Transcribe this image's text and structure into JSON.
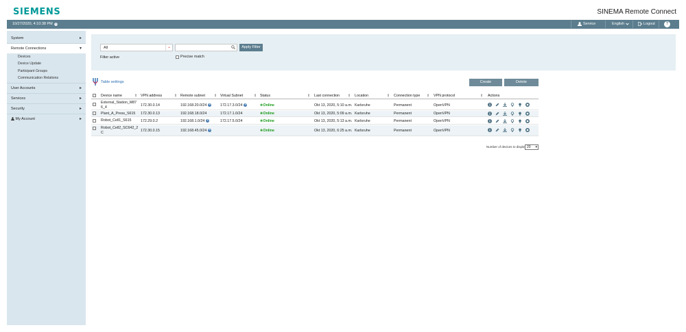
{
  "brand": {
    "logo": "SIEMENS",
    "app_title": "SINEMA Remote Connect"
  },
  "topbar": {
    "datetime": "10/27/2020, 4:10:38 PM",
    "user": "Service",
    "language": "English",
    "logout": "Logout",
    "help": "?"
  },
  "sidebar": {
    "items": [
      {
        "label": "System"
      },
      {
        "label": "Remote Connections"
      },
      {
        "label": "User Accounts"
      },
      {
        "label": "Services"
      },
      {
        "label": "Security"
      },
      {
        "label": "My Account"
      }
    ],
    "sub_items": [
      "Devices",
      "Device Update",
      "Participant Groups",
      "Communication Relations"
    ]
  },
  "filter": {
    "select_value": "All",
    "search_value": "",
    "apply_label": "Apply Filter",
    "filter_active_label": "Filter active",
    "precise_match_label": "Precise match"
  },
  "toolbar": {
    "table_settings": "Table settings",
    "create": "Create",
    "delete": "Delete"
  },
  "table": {
    "headers": [
      "Device name",
      "VPN address",
      "Remote subnet",
      "Virtual Subnet",
      "Status",
      "Last connection",
      "Location",
      "Connection type",
      "VPN protocol",
      "Actions"
    ],
    "rows": [
      {
        "name1": "External_Station_M87",
        "name2": "6_4",
        "vpn": "172.30.0.14",
        "remote": "192.168.20.0/24",
        "virtual": "172.17.3.0/24",
        "status": "Online",
        "last": "Okt 13, 2020, 5:10 a.m.",
        "location": "Karlsruhe",
        "conn_type": "Permanent",
        "protocol": "OpenVPN"
      },
      {
        "name1": "Plant_A_Press_S615",
        "name2": "",
        "vpn": "172.30.0.13",
        "remote": "192.168.18.0/24",
        "virtual": "172.17.1.0/24",
        "status": "Online",
        "last": "Okt 13, 2020, 5:09 a.m.",
        "location": "Karlsruhe",
        "conn_type": "Permanent",
        "protocol": "OpenVPN"
      },
      {
        "name1": "Robot_Cell1_S615",
        "name2": "",
        "vpn": "172.29.0.2",
        "remote": "192.168.1.0/24",
        "virtual": "172.17.5.0/24",
        "status": "Online",
        "last": "Okt 13, 2020, 5:13 a.m.",
        "location": "Karlsruhe",
        "conn_type": "Permanent",
        "protocol": "OpenVPN"
      },
      {
        "name1": "Robot_Cell2_SC642_2",
        "name2": "C",
        "vpn": "172.30.0.15",
        "remote": "192.168.45.0/24",
        "virtual": "",
        "status": "Online",
        "last": "Okt 13, 2020, 6:25 a.m.",
        "location": "Karlsruhe",
        "conn_type": "Permanent",
        "protocol": "OpenVPN"
      }
    ]
  },
  "pagination": {
    "label": "Number of devices to display:",
    "value": "20"
  },
  "colors": {
    "brand": "#009999",
    "bar": "#5b7d8e",
    "sidebar": "#d9e6ee",
    "online": "#1a9a1a"
  }
}
